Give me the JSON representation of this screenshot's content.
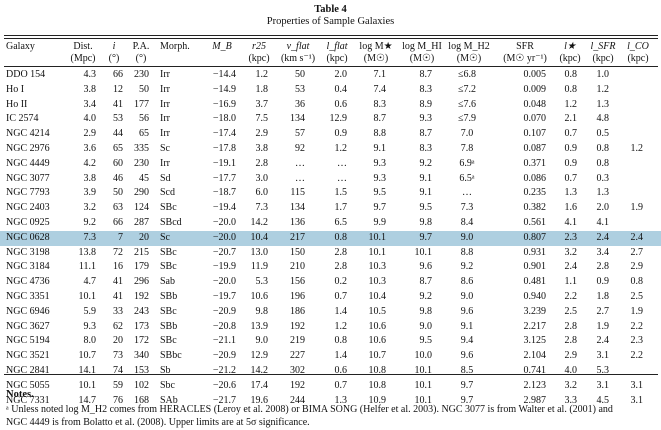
{
  "table": {
    "title": "Table 4",
    "subtitle": "Properties of Sample Galaxies",
    "headers": {
      "galaxy": [
        "Galaxy",
        ""
      ],
      "dist": [
        "Dist.",
        "(Mpc)"
      ],
      "incl": [
        "i",
        "(°)"
      ],
      "pa": [
        "P.A.",
        "(°)"
      ],
      "morph": [
        "Morph.",
        ""
      ],
      "mb": [
        "M_B",
        ""
      ],
      "r25": [
        "r25",
        "(kpc)"
      ],
      "vflat": [
        "v_flat",
        "(km s⁻¹)"
      ],
      "lflat": [
        "l_flat",
        "(kpc)"
      ],
      "logmstar": [
        "log M★",
        "(M☉)"
      ],
      "logmhi": [
        "log M_HI",
        "(M☉)"
      ],
      "logmh2": [
        "log M_H2",
        "(M☉)"
      ],
      "sfr": [
        "SFR",
        "(M☉ yr⁻¹)"
      ],
      "lstar": [
        "l★",
        "(kpc)"
      ],
      "lsfr": [
        "l_SFR",
        "(kpc)"
      ],
      "lco": [
        "l_CO",
        "(kpc)"
      ]
    },
    "rows": [
      [
        "DDO 154",
        "4.3",
        "66",
        "230",
        "Irr",
        "−14.4",
        "1.2",
        "50",
        "2.0",
        "7.1",
        "8.7",
        "≤6.8",
        "0.005",
        "0.8",
        "1.0",
        ""
      ],
      [
        "Ho I",
        "3.8",
        "12",
        "50",
        "Irr",
        "−14.9",
        "1.8",
        "53",
        "0.4",
        "7.4",
        "8.3",
        "≤7.2",
        "0.009",
        "0.8",
        "1.2",
        ""
      ],
      [
        "Ho II",
        "3.4",
        "41",
        "177",
        "Irr",
        "−16.9",
        "3.7",
        "36",
        "0.6",
        "8.3",
        "8.9",
        "≤7.6",
        "0.048",
        "1.2",
        "1.3",
        ""
      ],
      [
        "IC 2574",
        "4.0",
        "53",
        "56",
        "Irr",
        "−18.0",
        "7.5",
        "134",
        "12.9",
        "8.7",
        "9.3",
        "≤7.9",
        "0.070",
        "2.1",
        "4.8",
        ""
      ],
      [
        "NGC 4214",
        "2.9",
        "44",
        "65",
        "Irr",
        "−17.4",
        "2.9",
        "57",
        "0.9",
        "8.8",
        "8.7",
        "7.0",
        "0.107",
        "0.7",
        "0.5",
        ""
      ],
      [
        "NGC 2976",
        "3.6",
        "65",
        "335",
        "Sc",
        "−17.8",
        "3.8",
        "92",
        "1.2",
        "9.1",
        "8.3",
        "7.8",
        "0.087",
        "0.9",
        "0.8",
        "1.2"
      ],
      [
        "NGC 4449",
        "4.2",
        "60",
        "230",
        "Irr",
        "−19.1",
        "2.8",
        "…",
        "…",
        "9.3",
        "9.2",
        "6.9ᵃ",
        "0.371",
        "0.9",
        "0.8",
        ""
      ],
      [
        "NGC 3077",
        "3.8",
        "46",
        "45",
        "Sd",
        "−17.7",
        "3.0",
        "…",
        "…",
        "9.3",
        "9.1",
        "6.5ᵃ",
        "0.086",
        "0.7",
        "0.3",
        ""
      ],
      [
        "NGC 7793",
        "3.9",
        "50",
        "290",
        "Scd",
        "−18.7",
        "6.0",
        "115",
        "1.5",
        "9.5",
        "9.1",
        "…",
        "0.235",
        "1.3",
        "1.3",
        ""
      ],
      [
        "NGC 2403",
        "3.2",
        "63",
        "124",
        "SBc",
        "−19.4",
        "7.3",
        "134",
        "1.7",
        "9.7",
        "9.5",
        "7.3",
        "0.382",
        "1.6",
        "2.0",
        "1.9"
      ],
      [
        "NGC 0925",
        "9.2",
        "66",
        "287",
        "SBcd",
        "−20.0",
        "14.2",
        "136",
        "6.5",
        "9.9",
        "9.8",
        "8.4",
        "0.561",
        "4.1",
        "4.1",
        ""
      ],
      [
        "NGC 0628",
        "7.3",
        "7",
        "20",
        "Sc",
        "−20.0",
        "10.4",
        "217",
        "0.8",
        "10.1",
        "9.7",
        "9.0",
        "0.807",
        "2.3",
        "2.4",
        "2.4"
      ],
      [
        "NGC 3198",
        "13.8",
        "72",
        "215",
        "SBc",
        "−20.7",
        "13.0",
        "150",
        "2.8",
        "10.1",
        "10.1",
        "8.8",
        "0.931",
        "3.2",
        "3.4",
        "2.7"
      ],
      [
        "NGC 3184",
        "11.1",
        "16",
        "179",
        "SBc",
        "−19.9",
        "11.9",
        "210",
        "2.8",
        "10.3",
        "9.6",
        "9.2",
        "0.901",
        "2.4",
        "2.8",
        "2.9"
      ],
      [
        "NGC 4736",
        "4.7",
        "41",
        "296",
        "Sab",
        "−20.0",
        "5.3",
        "156",
        "0.2",
        "10.3",
        "8.7",
        "8.6",
        "0.481",
        "1.1",
        "0.9",
        "0.8"
      ],
      [
        "NGC 3351",
        "10.1",
        "41",
        "192",
        "SBb",
        "−19.7",
        "10.6",
        "196",
        "0.7",
        "10.4",
        "9.2",
        "9.0",
        "0.940",
        "2.2",
        "1.8",
        "2.5"
      ],
      [
        "NGC 6946",
        "5.9",
        "33",
        "243",
        "SBc",
        "−20.9",
        "9.8",
        "186",
        "1.4",
        "10.5",
        "9.8",
        "9.6",
        "3.239",
        "2.5",
        "2.7",
        "1.9"
      ],
      [
        "NGC 3627",
        "9.3",
        "62",
        "173",
        "SBb",
        "−20.8",
        "13.9",
        "192",
        "1.2",
        "10.6",
        "9.0",
        "9.1",
        "2.217",
        "2.8",
        "1.9",
        "2.2"
      ],
      [
        "NGC 5194",
        "8.0",
        "20",
        "172",
        "SBc",
        "−21.1",
        "9.0",
        "219",
        "0.8",
        "10.6",
        "9.5",
        "9.4",
        "3.125",
        "2.8",
        "2.4",
        "2.3"
      ],
      [
        "NGC 3521",
        "10.7",
        "73",
        "340",
        "SBbc",
        "−20.9",
        "12.9",
        "227",
        "1.4",
        "10.7",
        "10.0",
        "9.6",
        "2.104",
        "2.9",
        "3.1",
        "2.2"
      ],
      [
        "NGC 2841",
        "14.1",
        "74",
        "153",
        "Sb",
        "−21.2",
        "14.2",
        "302",
        "0.6",
        "10.8",
        "10.1",
        "8.5",
        "0.741",
        "4.0",
        "5.3",
        ""
      ],
      [
        "NGC 5055",
        "10.1",
        "59",
        "102",
        "Sbc",
        "−20.6",
        "17.4",
        "192",
        "0.7",
        "10.8",
        "10.1",
        "9.7",
        "2.123",
        "3.2",
        "3.1",
        "3.1"
      ],
      [
        "NGC 7331",
        "14.7",
        "76",
        "168",
        "SAb",
        "−21.7",
        "19.6",
        "244",
        "1.3",
        "10.9",
        "10.1",
        "9.7",
        "2.987",
        "3.3",
        "4.5",
        "3.1"
      ]
    ],
    "highlighted_row_index": 11,
    "highlight_color": "#aecfe0"
  },
  "notes": {
    "title": "Notes.",
    "line1": "ᵃ Unless noted log M_H2 comes from HERACLES (Leroy et al. 2008) or BIMA SONG (Helfer et al. 2003). NGC 3077 is from Walter et al. (2001) and",
    "line2": "NGC 4449 is from Bolatto et al. (2008). Upper limits are at 5σ significance."
  }
}
